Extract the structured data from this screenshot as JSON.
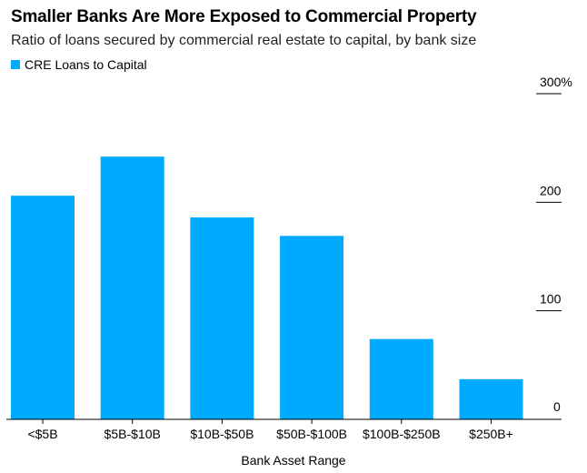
{
  "chart_data": {
    "type": "bar",
    "title": "Smaller Banks Are More Exposed to Commercial Property",
    "subtitle": "Ratio of loans secured by commercial real estate to capital, by bank size",
    "legend": [
      "CRE Loans to Capital"
    ],
    "categories": [
      "<$5B",
      "$5B-$10B",
      "$10B-$50B",
      "$50B-$100B",
      "$100B-$250B",
      "$250B+"
    ],
    "series": [
      {
        "name": "CRE Loans to Capital",
        "values": [
          206,
          242,
          186,
          169,
          74,
          37
        ]
      }
    ],
    "xlabel": "Bank Asset Range",
    "ylabel": "",
    "ylim": [
      0,
      300
    ],
    "yticks": [
      0,
      100,
      200,
      300
    ],
    "ytick_labels": [
      "0",
      "100",
      "200",
      "300%"
    ],
    "y_axis_position": "right",
    "grid": false,
    "legend_placement": "top-left",
    "bar_color": "#00aaff"
  }
}
